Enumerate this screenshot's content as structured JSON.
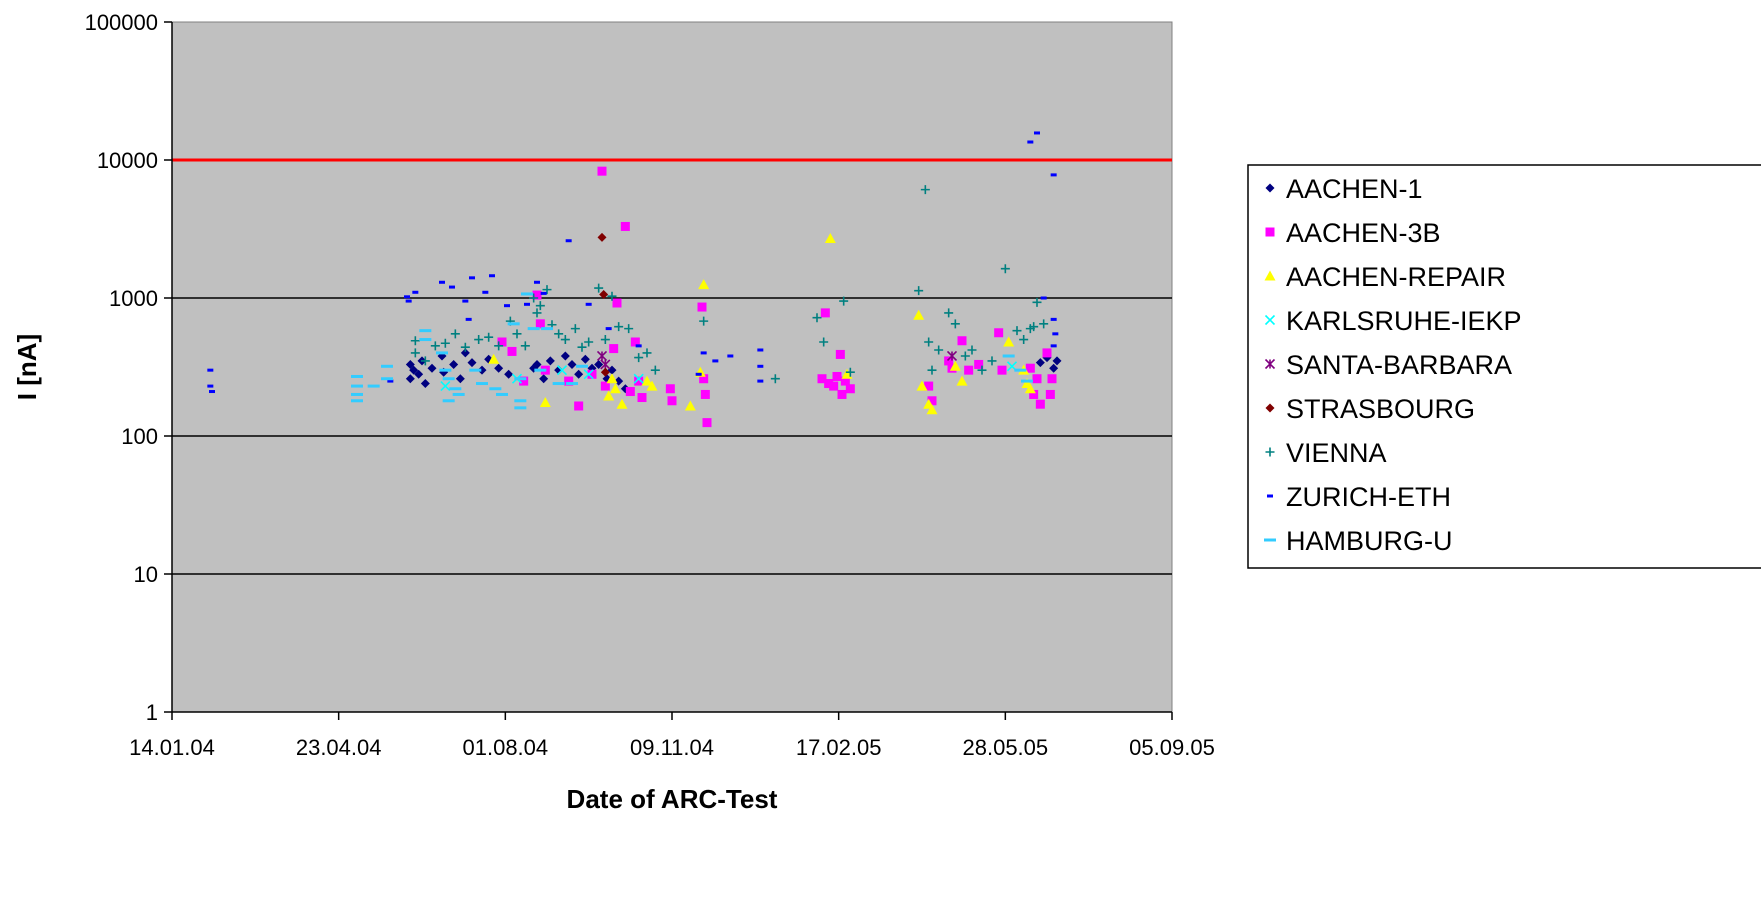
{
  "chart_data": {
    "type": "scatter",
    "title": "",
    "xlabel": "Date of ARC-Test",
    "ylabel": "I [nA]",
    "y_scale": "log",
    "ylim": [
      1,
      100000
    ],
    "xlim": [
      "2004-01-14",
      "2005-09-05"
    ],
    "x_tick_labels": [
      "14.01.04",
      "23.04.04",
      "01.08.04",
      "09.11.04",
      "17.02.05",
      "28.05.05",
      "05.09.05"
    ],
    "y_tick_labels": [
      "1",
      "10",
      "100",
      "1000",
      "10000",
      "100000"
    ],
    "grid": "horizontal major lines",
    "plot_background": "#c0c0c0",
    "threshold_line": {
      "y": 10000,
      "color": "#ff0000"
    },
    "legend_position": "right",
    "series": [
      {
        "name": "AACHEN-1",
        "marker": "diamond",
        "color": "#000080",
        "points": [
          [
            "2004-06-05",
            330
          ],
          [
            "2004-06-05",
            260
          ],
          [
            "2004-06-07",
            300
          ],
          [
            "2004-06-10",
            280
          ],
          [
            "2004-06-12",
            350
          ],
          [
            "2004-06-14",
            240
          ],
          [
            "2004-06-18",
            310
          ],
          [
            "2004-06-24",
            380
          ],
          [
            "2004-06-25",
            290
          ],
          [
            "2004-07-01",
            330
          ],
          [
            "2004-07-05",
            260
          ],
          [
            "2004-07-08",
            400
          ],
          [
            "2004-07-12",
            340
          ],
          [
            "2004-07-18",
            300
          ],
          [
            "2004-07-22",
            360
          ],
          [
            "2004-07-28",
            310
          ],
          [
            "2004-08-03",
            280
          ],
          [
            "2004-08-18",
            310
          ],
          [
            "2004-08-20",
            330
          ],
          [
            "2004-08-24",
            260
          ],
          [
            "2004-08-28",
            350
          ],
          [
            "2004-09-02",
            300
          ],
          [
            "2004-09-06",
            380
          ],
          [
            "2004-09-10",
            330
          ],
          [
            "2004-09-14",
            280
          ],
          [
            "2004-09-18",
            360
          ],
          [
            "2004-09-22",
            310
          ],
          [
            "2004-09-26",
            330
          ],
          [
            "2004-10-01",
            260
          ],
          [
            "2004-10-04",
            300
          ],
          [
            "2004-10-08",
            250
          ],
          [
            "2004-10-12",
            220
          ],
          [
            "2005-06-18",
            340
          ],
          [
            "2005-06-22",
            370
          ],
          [
            "2005-06-26",
            310
          ],
          [
            "2005-06-28",
            350
          ]
        ]
      },
      {
        "name": "AACHEN-3B",
        "marker": "square",
        "color": "#ff00ff",
        "points": [
          [
            "2004-07-30",
            480
          ],
          [
            "2004-08-05",
            410
          ],
          [
            "2004-08-12",
            250
          ],
          [
            "2004-08-20",
            1050
          ],
          [
            "2004-08-22",
            650
          ],
          [
            "2004-08-25",
            300
          ],
          [
            "2004-09-08",
            250
          ],
          [
            "2004-09-14",
            165
          ],
          [
            "2004-09-22",
            280
          ],
          [
            "2004-09-28",
            8300
          ],
          [
            "2004-09-30",
            230
          ],
          [
            "2004-10-05",
            430
          ],
          [
            "2004-10-07",
            920
          ],
          [
            "2004-10-12",
            3300
          ],
          [
            "2004-10-15",
            210
          ],
          [
            "2004-10-18",
            480
          ],
          [
            "2004-10-20",
            250
          ],
          [
            "2004-10-22",
            190
          ],
          [
            "2004-11-08",
            220
          ],
          [
            "2004-11-09",
            180
          ],
          [
            "2004-11-27",
            860
          ],
          [
            "2004-11-28",
            260
          ],
          [
            "2004-11-29",
            200
          ],
          [
            "2004-11-30",
            125
          ],
          [
            "2005-02-07",
            260
          ],
          [
            "2005-02-09",
            780
          ],
          [
            "2005-02-11",
            240
          ],
          [
            "2005-02-14",
            230
          ],
          [
            "2005-02-16",
            270
          ],
          [
            "2005-02-18",
            390
          ],
          [
            "2005-02-19",
            200
          ],
          [
            "2005-02-21",
            250
          ],
          [
            "2005-02-24",
            220
          ],
          [
            "2005-04-12",
            230
          ],
          [
            "2005-04-14",
            180
          ],
          [
            "2005-04-24",
            350
          ],
          [
            "2005-04-26",
            310
          ],
          [
            "2005-05-02",
            490
          ],
          [
            "2005-05-06",
            300
          ],
          [
            "2005-05-12",
            330
          ],
          [
            "2005-05-24",
            560
          ],
          [
            "2005-05-26",
            300
          ],
          [
            "2005-06-12",
            310
          ],
          [
            "2005-06-14",
            200
          ],
          [
            "2005-06-16",
            260
          ],
          [
            "2005-06-18",
            170
          ],
          [
            "2005-06-22",
            400
          ],
          [
            "2005-06-24",
            200
          ],
          [
            "2005-06-25",
            260
          ]
        ]
      },
      {
        "name": "AACHEN-REPAIR",
        "marker": "triangle",
        "color": "#ffff00",
        "points": [
          [
            "2004-07-25",
            360
          ],
          [
            "2004-08-25",
            175
          ],
          [
            "2004-10-02",
            195
          ],
          [
            "2004-10-04",
            260
          ],
          [
            "2004-10-06",
            220
          ],
          [
            "2004-10-10",
            170
          ],
          [
            "2004-10-25",
            250
          ],
          [
            "2004-10-28",
            230
          ],
          [
            "2004-11-20",
            165
          ],
          [
            "2004-11-26",
            290
          ],
          [
            "2004-11-28",
            1250
          ],
          [
            "2005-02-12",
            2700
          ],
          [
            "2005-02-22",
            280
          ],
          [
            "2005-04-06",
            750
          ],
          [
            "2005-04-08",
            230
          ],
          [
            "2005-04-12",
            170
          ],
          [
            "2005-04-14",
            155
          ],
          [
            "2005-04-28",
            320
          ],
          [
            "2005-05-02",
            250
          ],
          [
            "2005-05-30",
            480
          ],
          [
            "2005-06-08",
            300
          ],
          [
            "2005-06-10",
            240
          ],
          [
            "2005-06-12",
            220
          ]
        ]
      },
      {
        "name": "KARLSRUHE-IEKP",
        "marker": "x",
        "color": "#00ffff",
        "points": [
          [
            "2004-06-26",
            230
          ],
          [
            "2004-08-08",
            260
          ],
          [
            "2004-09-04",
            300
          ],
          [
            "2004-09-20",
            280
          ],
          [
            "2004-10-20",
            260
          ],
          [
            "2005-06-01",
            320
          ]
        ]
      },
      {
        "name": "SANTA-BARBARA",
        "marker": "star",
        "color": "#800080",
        "points": [
          [
            "2004-09-28",
            380
          ],
          [
            "2004-09-30",
            330
          ],
          [
            "2005-04-26",
            380
          ]
        ]
      },
      {
        "name": "STRASBOURG",
        "marker": "diamond",
        "color": "#800000",
        "points": [
          [
            "2004-09-28",
            2750
          ],
          [
            "2004-09-29",
            1060
          ],
          [
            "2004-09-30",
            290
          ]
        ]
      },
      {
        "name": "VIENNA",
        "marker": "plus",
        "color": "#008080",
        "points": [
          [
            "2004-06-08",
            490
          ],
          [
            "2004-06-08",
            400
          ],
          [
            "2004-06-14",
            350
          ],
          [
            "2004-06-20",
            450
          ],
          [
            "2004-06-26",
            470
          ],
          [
            "2004-07-02",
            550
          ],
          [
            "2004-07-08",
            440
          ],
          [
            "2004-07-16",
            500
          ],
          [
            "2004-07-22",
            520
          ],
          [
            "2004-07-28",
            450
          ],
          [
            "2004-08-04",
            680
          ],
          [
            "2004-08-08",
            550
          ],
          [
            "2004-08-13",
            450
          ],
          [
            "2004-08-18",
            1000
          ],
          [
            "2004-08-20",
            780
          ],
          [
            "2004-08-22",
            880
          ],
          [
            "2004-08-26",
            1150
          ],
          [
            "2004-08-29",
            640
          ],
          [
            "2004-09-02",
            550
          ],
          [
            "2004-09-06",
            500
          ],
          [
            "2004-09-12",
            600
          ],
          [
            "2004-09-16",
            440
          ],
          [
            "2004-09-20",
            480
          ],
          [
            "2004-09-26",
            1180
          ],
          [
            "2004-09-30",
            500
          ],
          [
            "2004-10-04",
            1030
          ],
          [
            "2004-10-08",
            620
          ],
          [
            "2004-10-14",
            600
          ],
          [
            "2004-10-20",
            370
          ],
          [
            "2004-10-25",
            400
          ],
          [
            "2004-10-30",
            300
          ],
          [
            "2004-11-28",
            680
          ],
          [
            "2005-01-10",
            260
          ],
          [
            "2005-02-04",
            720
          ],
          [
            "2005-02-08",
            480
          ],
          [
            "2005-02-20",
            950
          ],
          [
            "2005-02-24",
            290
          ],
          [
            "2005-04-06",
            1130
          ],
          [
            "2005-04-10",
            6100
          ],
          [
            "2005-04-12",
            480
          ],
          [
            "2005-04-14",
            300
          ],
          [
            "2005-04-18",
            420
          ],
          [
            "2005-04-24",
            780
          ],
          [
            "2005-04-28",
            650
          ],
          [
            "2005-05-04",
            380
          ],
          [
            "2005-05-08",
            420
          ],
          [
            "2005-05-14",
            300
          ],
          [
            "2005-05-20",
            350
          ],
          [
            "2005-05-28",
            1630
          ],
          [
            "2005-06-04",
            580
          ],
          [
            "2005-06-08",
            500
          ],
          [
            "2005-06-12",
            600
          ],
          [
            "2005-06-14",
            620
          ],
          [
            "2005-06-16",
            930
          ],
          [
            "2005-06-20",
            650
          ]
        ]
      },
      {
        "name": "ZURICH-ETH",
        "marker": "dash",
        "color": "#0000ff",
        "points": [
          [
            "2004-02-06",
            300
          ],
          [
            "2004-02-06",
            230
          ],
          [
            "2004-02-07",
            210
          ],
          [
            "2004-05-24",
            250
          ],
          [
            "2004-06-03",
            1020
          ],
          [
            "2004-06-04",
            950
          ],
          [
            "2004-06-08",
            1100
          ],
          [
            "2004-06-24",
            1300
          ],
          [
            "2004-06-30",
            1200
          ],
          [
            "2004-07-08",
            950
          ],
          [
            "2004-07-10",
            700
          ],
          [
            "2004-07-12",
            1400
          ],
          [
            "2004-07-20",
            1100
          ],
          [
            "2004-07-24",
            1450
          ],
          [
            "2004-08-02",
            880
          ],
          [
            "2004-08-14",
            900
          ],
          [
            "2004-08-20",
            1300
          ],
          [
            "2004-08-24",
            1080
          ],
          [
            "2004-09-08",
            2600
          ],
          [
            "2004-09-20",
            900
          ],
          [
            "2004-10-02",
            600
          ],
          [
            "2004-10-20",
            450
          ],
          [
            "2004-11-25",
            280
          ],
          [
            "2004-11-28",
            400
          ],
          [
            "2004-12-05",
            350
          ],
          [
            "2004-12-14",
            380
          ],
          [
            "2005-01-01",
            420
          ],
          [
            "2005-01-01",
            320
          ],
          [
            "2005-01-01",
            250
          ],
          [
            "2005-06-12",
            13500
          ],
          [
            "2005-06-16",
            15700
          ],
          [
            "2005-06-20",
            1000
          ],
          [
            "2005-06-26",
            7800
          ],
          [
            "2005-06-26",
            700
          ],
          [
            "2005-06-27",
            550
          ],
          [
            "2005-06-26",
            450
          ]
        ]
      },
      {
        "name": "HAMBURG-U",
        "marker": "dash",
        "color": "#33ccff",
        "points": [
          [
            "2004-05-04",
            270
          ],
          [
            "2004-05-04",
            230
          ],
          [
            "2004-05-04",
            200
          ],
          [
            "2004-05-04",
            180
          ],
          [
            "2004-05-14",
            230
          ],
          [
            "2004-05-22",
            320
          ],
          [
            "2004-05-22",
            260
          ],
          [
            "2004-06-14",
            580
          ],
          [
            "2004-06-14",
            500
          ],
          [
            "2004-06-24",
            400
          ],
          [
            "2004-06-26",
            300
          ],
          [
            "2004-06-28",
            260
          ],
          [
            "2004-06-28",
            180
          ],
          [
            "2004-07-02",
            220
          ],
          [
            "2004-07-04",
            200
          ],
          [
            "2004-07-14",
            300
          ],
          [
            "2004-07-18",
            240
          ],
          [
            "2004-07-26",
            220
          ],
          [
            "2004-07-30",
            200
          ],
          [
            "2004-08-06",
            650
          ],
          [
            "2004-08-10",
            260
          ],
          [
            "2004-08-10",
            180
          ],
          [
            "2004-08-10",
            160
          ],
          [
            "2004-08-14",
            1070
          ],
          [
            "2004-08-18",
            600
          ],
          [
            "2004-08-22",
            300
          ],
          [
            "2004-08-26",
            600
          ],
          [
            "2004-09-02",
            240
          ],
          [
            "2004-09-10",
            240
          ],
          [
            "2004-09-16",
            320
          ],
          [
            "2005-05-30",
            380
          ],
          [
            "2005-06-06",
            300
          ],
          [
            "2005-06-10",
            250
          ]
        ]
      }
    ]
  }
}
